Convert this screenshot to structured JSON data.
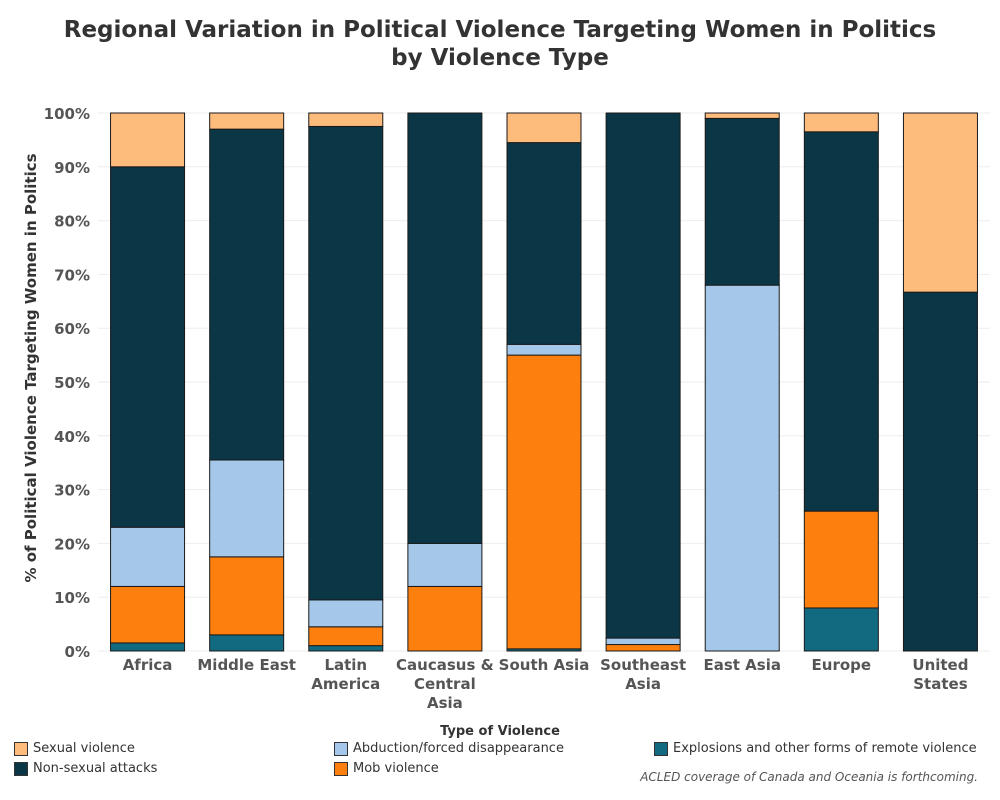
{
  "chart_data": {
    "type": "bar",
    "stacked": true,
    "title_line1": "Regional Variation in Political Violence Targeting Women in Politics",
    "title_line2": "by Violence Type",
    "ylabel": "% of Political Violence Targeting Women in Politics",
    "ylim": [
      0,
      100
    ],
    "yticks": [
      "0%",
      "10%",
      "20%",
      "30%",
      "40%",
      "50%",
      "60%",
      "70%",
      "80%",
      "90%",
      "100%"
    ],
    "categories": [
      [
        "Africa"
      ],
      [
        "Middle East"
      ],
      [
        "Latin",
        "America"
      ],
      [
        "Caucasus &",
        "Central",
        "Asia"
      ],
      [
        "South Asia"
      ],
      [
        "Southeast",
        "Asia"
      ],
      [
        "East Asia"
      ],
      [
        "Europe"
      ],
      [
        "United",
        "States"
      ]
    ],
    "series": [
      {
        "name": "Explosions and other forms of remote violence",
        "color": "#126a80",
        "values": [
          1.5,
          3,
          1,
          0,
          0.4,
          0,
          0,
          8,
          0
        ]
      },
      {
        "name": "Mob violence",
        "color": "#fd7f0e",
        "values": [
          10.5,
          14.5,
          3.5,
          12,
          54.6,
          1.2,
          0,
          18,
          0
        ]
      },
      {
        "name": "Abduction/forced disappearance",
        "color": "#a5c8ea",
        "values": [
          11,
          18,
          5,
          8,
          2,
          1.2,
          68,
          0,
          0
        ]
      },
      {
        "name": "Non-sexual attacks",
        "color": "#0b3646",
        "values": [
          67,
          61.5,
          88,
          80,
          37.5,
          97.6,
          31,
          70.5,
          66.7
        ]
      },
      {
        "name": "Sexual violence",
        "color": "#fdbb7c",
        "values": [
          10,
          3,
          2.5,
          0,
          5.5,
          0,
          1,
          3.5,
          33.3
        ]
      }
    ],
    "grid": true,
    "legend_position": "bottom"
  },
  "legend": {
    "title": "Type of Violence",
    "items": [
      {
        "label": "Sexual violence",
        "color": "#fdbb7c"
      },
      {
        "label": "Abduction/forced disappearance",
        "color": "#a5c8ea"
      },
      {
        "label": "Explosions and other forms of remote violence",
        "color": "#126a80"
      },
      {
        "label": "Non-sexual attacks",
        "color": "#0b3646"
      },
      {
        "label": "Mob violence",
        "color": "#fd7f0e"
      }
    ]
  },
  "footnote": "ACLED coverage of Canada and Oceania is forthcoming."
}
